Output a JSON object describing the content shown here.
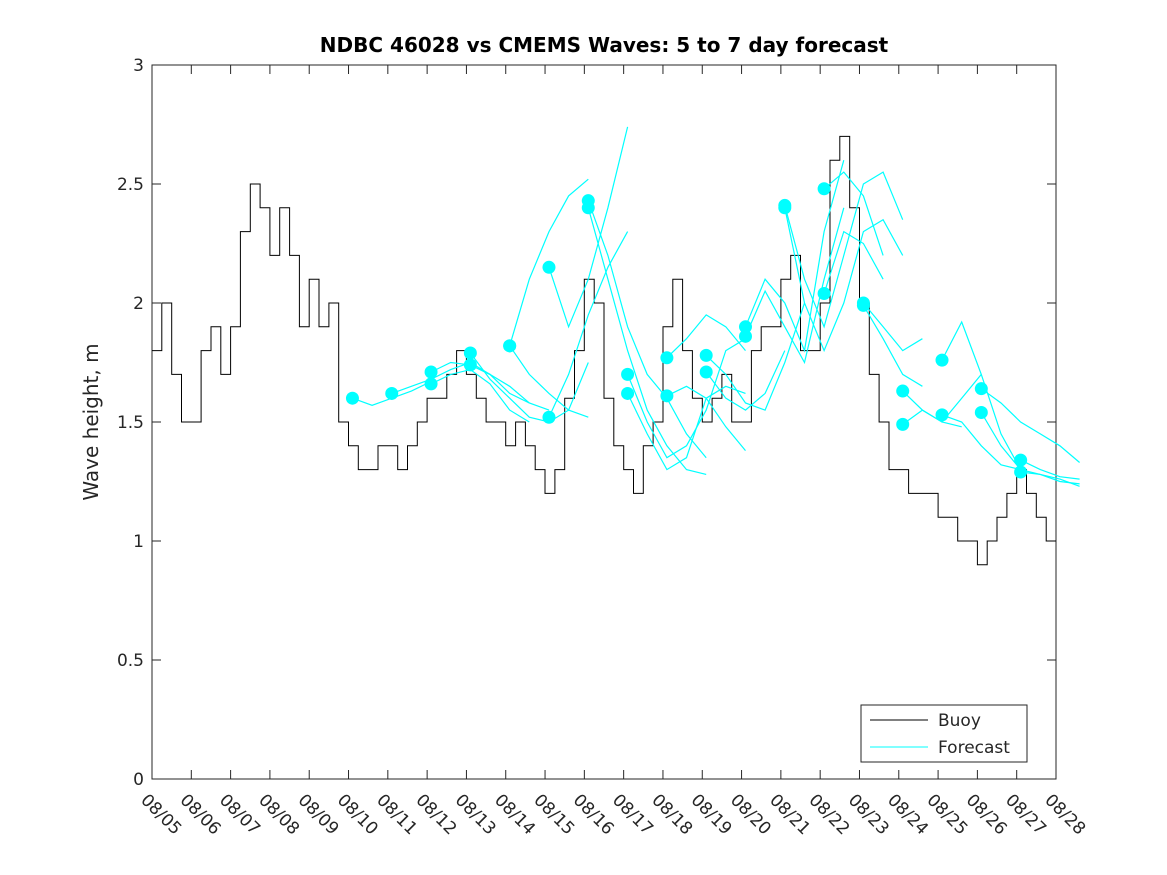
{
  "chart_data": {
    "type": "line",
    "title": "NDBC 46028 vs CMEMS Waves: 5 to 7 day forecast",
    "xlabel": "",
    "ylabel": "Wave height, m",
    "ylim": [
      0,
      3
    ],
    "xlim_days": [
      0,
      23
    ],
    "yticks": [
      "0",
      "0.5",
      "1",
      "1.5",
      "2",
      "2.5",
      "3"
    ],
    "ytick_values": [
      0,
      0.5,
      1,
      1.5,
      2,
      2.5,
      3
    ],
    "xticks": [
      "08/05",
      "08/06",
      "08/07",
      "08/08",
      "08/09",
      "08/10",
      "08/11",
      "08/12",
      "08/13",
      "08/14",
      "08/15",
      "08/16",
      "08/17",
      "08/18",
      "08/19",
      "08/20",
      "08/21",
      "08/22",
      "08/23",
      "08/24",
      "08/25",
      "08/26",
      "08/27",
      "08/28"
    ],
    "legend": {
      "placement": "bottom-right",
      "entries": [
        "Buoy",
        "Forecast"
      ]
    },
    "colors": {
      "buoy": "#000000",
      "forecast": "#00ffff"
    },
    "buoy": {
      "name": "Buoy",
      "step_days": 0.25,
      "values": [
        1.8,
        2.0,
        1.7,
        1.5,
        1.5,
        1.8,
        1.9,
        1.7,
        1.9,
        2.3,
        2.5,
        2.4,
        2.2,
        2.4,
        2.2,
        1.9,
        2.1,
        1.9,
        2.0,
        1.5,
        1.4,
        1.3,
        1.3,
        1.4,
        1.4,
        1.3,
        1.4,
        1.5,
        1.6,
        1.6,
        1.7,
        1.8,
        1.7,
        1.6,
        1.5,
        1.5,
        1.4,
        1.5,
        1.4,
        1.3,
        1.2,
        1.3,
        1.6,
        1.8,
        2.1,
        2.0,
        1.6,
        1.4,
        1.3,
        1.2,
        1.4,
        1.5,
        1.9,
        2.1,
        1.8,
        1.6,
        1.5,
        1.6,
        1.7,
        1.5,
        1.5,
        1.8,
        1.9,
        1.9,
        2.1,
        2.2,
        1.8,
        1.8,
        2.0,
        2.6,
        2.7,
        2.4,
        2.0,
        1.7,
        1.5,
        1.3,
        1.3,
        1.2,
        1.2,
        1.2,
        1.1,
        1.1,
        1.0,
        1.0,
        0.9,
        1.0,
        1.1,
        1.2,
        1.3,
        1.2,
        1.1,
        1.0
      ]
    },
    "forecast": {
      "name": "Forecast",
      "step_days": 0.5,
      "runs": [
        {
          "start": 5.1,
          "values": [
            1.6,
            1.57,
            1.6,
            1.63,
            1.67
          ]
        },
        {
          "start": 6.1,
          "values": [
            1.62,
            1.65,
            1.68,
            1.72,
            1.75,
            1.7
          ]
        },
        {
          "start": 7.1,
          "values": [
            1.71,
            1.75,
            1.74,
            1.7,
            1.62,
            1.58
          ]
        },
        {
          "start": 7.1,
          "values": [
            1.66,
            1.7,
            1.72,
            1.66,
            1.55,
            1.5
          ]
        },
        {
          "start": 8.1,
          "values": [
            1.79,
            1.68,
            1.6,
            1.52,
            1.5,
            1.55,
            1.75
          ]
        },
        {
          "start": 8.1,
          "values": [
            1.74,
            1.7,
            1.65,
            1.58,
            1.55
          ]
        },
        {
          "start": 9.1,
          "values": [
            1.82,
            2.1,
            2.3,
            2.45,
            2.52
          ]
        },
        {
          "start": 9.1,
          "values": [
            1.82,
            1.7,
            1.62,
            1.55,
            1.52
          ]
        },
        {
          "start": 10.1,
          "values": [
            2.15,
            1.9,
            2.1,
            2.4,
            2.74
          ]
        },
        {
          "start": 10.1,
          "values": [
            1.52,
            1.7,
            1.95,
            2.15,
            2.3
          ]
        },
        {
          "start": 11.1,
          "values": [
            2.43,
            2.2,
            1.9,
            1.7,
            1.6,
            1.45,
            1.35
          ]
        },
        {
          "start": 11.1,
          "values": [
            2.4,
            2.1,
            1.8,
            1.55,
            1.4,
            1.3,
            1.28
          ]
        },
        {
          "start": 12.1,
          "values": [
            1.7,
            1.5,
            1.35,
            1.4,
            1.55,
            1.8,
            1.85
          ]
        },
        {
          "start": 12.1,
          "values": [
            1.62,
            1.45,
            1.3,
            1.35,
            1.6,
            1.65,
            1.62
          ]
        },
        {
          "start": 13.1,
          "values": [
            1.77,
            1.85,
            1.95,
            1.9,
            1.8
          ]
        },
        {
          "start": 13.1,
          "values": [
            1.61,
            1.65,
            1.6,
            1.48,
            1.38
          ]
        },
        {
          "start": 14.1,
          "values": [
            1.78,
            1.7,
            1.58,
            1.55,
            1.75,
            2.0
          ]
        },
        {
          "start": 14.1,
          "values": [
            1.71,
            1.6,
            1.55,
            1.62,
            1.8
          ]
        },
        {
          "start": 15.1,
          "values": [
            1.9,
            2.1,
            2.0,
            1.8,
            2.3,
            2.6
          ]
        },
        {
          "start": 15.1,
          "values": [
            1.86,
            2.05,
            1.9,
            1.75,
            2.1,
            2.4
          ]
        },
        {
          "start": 16.1,
          "values": [
            2.41,
            2.1,
            1.9,
            2.2,
            2.5,
            2.55,
            2.35
          ]
        },
        {
          "start": 16.1,
          "values": [
            2.4,
            2.0,
            1.8,
            2.0,
            2.3,
            2.35,
            2.2
          ]
        },
        {
          "start": 17.1,
          "values": [
            2.48,
            2.55,
            2.45,
            2.2
          ]
        },
        {
          "start": 17.1,
          "values": [
            2.04,
            2.3,
            2.25,
            2.1
          ]
        },
        {
          "start": 18.1,
          "values": [
            2.0,
            1.9,
            1.8,
            1.85
          ]
        },
        {
          "start": 18.1,
          "values": [
            1.99,
            1.85,
            1.7,
            1.65
          ]
        },
        {
          "start": 19.1,
          "values": [
            1.63,
            1.55,
            1.5,
            1.6,
            1.7
          ]
        },
        {
          "start": 19.1,
          "values": [
            1.49,
            1.55,
            1.5,
            1.48
          ]
        },
        {
          "start": 20.1,
          "values": [
            1.76,
            1.92,
            1.7,
            1.45,
            1.3
          ]
        },
        {
          "start": 20.1,
          "values": [
            1.53,
            1.5,
            1.4,
            1.32,
            1.3
          ]
        },
        {
          "start": 21.1,
          "values": [
            1.64,
            1.58,
            1.5,
            1.45,
            1.4,
            1.33
          ]
        },
        {
          "start": 21.1,
          "values": [
            1.54,
            1.4,
            1.3,
            1.28,
            1.26,
            1.23
          ]
        },
        {
          "start": 22.1,
          "values": [
            1.34,
            1.3,
            1.27,
            1.26
          ]
        },
        {
          "start": 22.1,
          "values": [
            1.29,
            1.28,
            1.25,
            1.24
          ]
        }
      ]
    }
  }
}
